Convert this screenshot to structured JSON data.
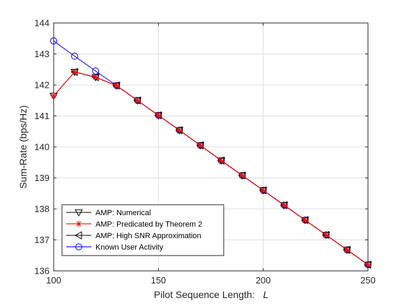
{
  "chart_data": {
    "type": "line",
    "title": "",
    "xlabel_text": "Pilot Sequence Length:",
    "xlabel_var": "L",
    "ylabel": "Sum-Rate (bps/Hz)",
    "xlim": [
      100,
      250
    ],
    "ylim": [
      136,
      144
    ],
    "xticks": [
      100,
      150,
      200,
      250
    ],
    "yticks": [
      136,
      137,
      138,
      139,
      140,
      141,
      142,
      143,
      144
    ],
    "grid": true,
    "legend_position": "bottom-left",
    "series": [
      {
        "name": "AMP: Numerical",
        "color": "#000000",
        "marker": "triangle-down",
        "x": [
          100,
          110,
          120,
          130,
          140,
          150,
          160,
          170,
          180,
          190,
          200,
          210,
          220,
          230,
          240,
          250
        ],
        "y": [
          141.65,
          142.42,
          142.25,
          141.98,
          141.5,
          141.02,
          140.54,
          140.05,
          139.56,
          139.08,
          138.6,
          138.12,
          137.64,
          137.16,
          136.68,
          136.2
        ]
      },
      {
        "name": "AMP: Predicated by Theorem 2",
        "color": "#ff0000",
        "marker": "asterisk",
        "x": [
          100,
          110,
          120,
          130,
          140,
          150,
          160,
          170,
          180,
          190,
          200,
          210,
          220,
          230,
          240,
          250
        ],
        "y": [
          141.65,
          142.42,
          142.25,
          141.98,
          141.5,
          141.02,
          140.54,
          140.05,
          139.56,
          139.08,
          138.6,
          138.12,
          137.64,
          137.16,
          136.68,
          136.2
        ]
      },
      {
        "name": "AMP: High SNR Approximation",
        "color": "#000000",
        "marker": "triangle-left",
        "x": [
          110,
          120,
          130,
          140,
          150,
          160,
          170,
          180,
          190,
          200,
          210,
          220,
          230,
          240,
          250
        ],
        "y": [
          142.42,
          142.25,
          141.98,
          141.5,
          141.02,
          140.54,
          140.05,
          139.56,
          139.08,
          138.6,
          138.12,
          137.64,
          137.16,
          136.68,
          136.2
        ]
      },
      {
        "name": "Known User Activity",
        "color": "#0000ff",
        "marker": "circle",
        "x": [
          100,
          110,
          120,
          130,
          140,
          150,
          160,
          170,
          180,
          190,
          200,
          210,
          220,
          230,
          240,
          250
        ],
        "y": [
          143.42,
          142.93,
          142.45,
          141.98,
          141.5,
          141.02,
          140.54,
          140.05,
          139.56,
          139.08,
          138.6,
          138.12,
          137.64,
          137.16,
          136.68,
          136.2
        ]
      }
    ]
  }
}
